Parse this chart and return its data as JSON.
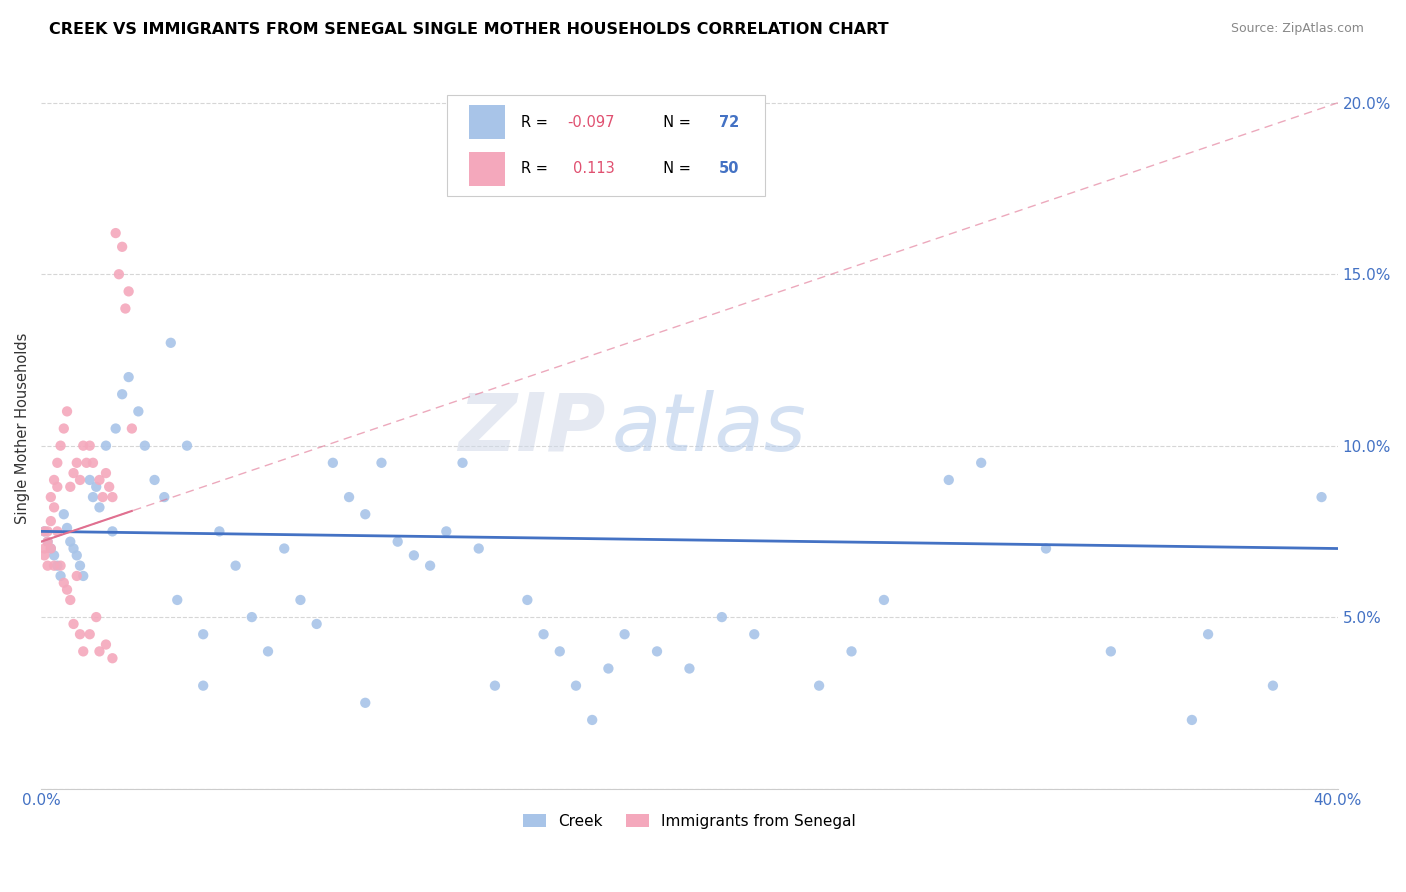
{
  "title": "CREEK VS IMMIGRANTS FROM SENEGAL SINGLE MOTHER HOUSEHOLDS CORRELATION CHART",
  "source": "Source: ZipAtlas.com",
  "ylabel": "Single Mother Households",
  "watermark": "ZIPatlas",
  "xlim": [
    0.0,
    0.4
  ],
  "ylim": [
    0.0,
    0.21
  ],
  "legend_creek_R": "-0.097",
  "legend_creek_N": "72",
  "legend_senegal_R": "0.113",
  "legend_senegal_N": "50",
  "creek_color": "#a8c4e8",
  "senegal_color": "#f4a8bc",
  "creek_line_color": "#4472c4",
  "senegal_line_color": "#e07090",
  "creek_x": [
    0.001,
    0.002,
    0.003,
    0.004,
    0.005,
    0.006,
    0.007,
    0.008,
    0.009,
    0.01,
    0.011,
    0.012,
    0.013,
    0.015,
    0.016,
    0.017,
    0.018,
    0.02,
    0.022,
    0.023,
    0.025,
    0.027,
    0.03,
    0.032,
    0.035,
    0.038,
    0.04,
    0.042,
    0.045,
    0.05,
    0.055,
    0.06,
    0.065,
    0.07,
    0.075,
    0.08,
    0.085,
    0.09,
    0.095,
    0.1,
    0.105,
    0.11,
    0.115,
    0.12,
    0.125,
    0.13,
    0.135,
    0.14,
    0.15,
    0.155,
    0.16,
    0.165,
    0.17,
    0.175,
    0.18,
    0.19,
    0.2,
    0.21,
    0.22,
    0.24,
    0.25,
    0.26,
    0.28,
    0.29,
    0.31,
    0.33,
    0.355,
    0.36,
    0.38,
    0.395,
    0.05,
    0.1
  ],
  "creek_y": [
    0.075,
    0.072,
    0.07,
    0.068,
    0.065,
    0.062,
    0.08,
    0.076,
    0.072,
    0.07,
    0.068,
    0.065,
    0.062,
    0.09,
    0.085,
    0.088,
    0.082,
    0.1,
    0.075,
    0.105,
    0.115,
    0.12,
    0.11,
    0.1,
    0.09,
    0.085,
    0.13,
    0.055,
    0.1,
    0.045,
    0.075,
    0.065,
    0.05,
    0.04,
    0.07,
    0.055,
    0.048,
    0.095,
    0.085,
    0.08,
    0.095,
    0.072,
    0.068,
    0.065,
    0.075,
    0.095,
    0.07,
    0.03,
    0.055,
    0.045,
    0.04,
    0.03,
    0.02,
    0.035,
    0.045,
    0.04,
    0.035,
    0.05,
    0.045,
    0.03,
    0.04,
    0.055,
    0.09,
    0.095,
    0.07,
    0.04,
    0.02,
    0.045,
    0.03,
    0.085,
    0.03,
    0.025
  ],
  "senegal_x": [
    0.001,
    0.001,
    0.001,
    0.002,
    0.002,
    0.002,
    0.003,
    0.003,
    0.003,
    0.004,
    0.004,
    0.004,
    0.005,
    0.005,
    0.005,
    0.006,
    0.006,
    0.007,
    0.007,
    0.008,
    0.008,
    0.009,
    0.009,
    0.01,
    0.01,
    0.011,
    0.011,
    0.012,
    0.012,
    0.013,
    0.013,
    0.014,
    0.015,
    0.015,
    0.016,
    0.017,
    0.018,
    0.018,
    0.019,
    0.02,
    0.02,
    0.021,
    0.022,
    0.022,
    0.023,
    0.024,
    0.025,
    0.026,
    0.027,
    0.028
  ],
  "senegal_y": [
    0.075,
    0.07,
    0.068,
    0.072,
    0.075,
    0.065,
    0.085,
    0.078,
    0.07,
    0.09,
    0.082,
    0.065,
    0.095,
    0.088,
    0.075,
    0.1,
    0.065,
    0.105,
    0.06,
    0.11,
    0.058,
    0.088,
    0.055,
    0.092,
    0.048,
    0.095,
    0.062,
    0.09,
    0.045,
    0.1,
    0.04,
    0.095,
    0.1,
    0.045,
    0.095,
    0.05,
    0.09,
    0.04,
    0.085,
    0.092,
    0.042,
    0.088,
    0.085,
    0.038,
    0.162,
    0.15,
    0.158,
    0.14,
    0.145,
    0.105
  ],
  "creek_trendline_x": [
    0.0,
    0.4
  ],
  "creek_trendline_y": [
    0.075,
    0.07
  ],
  "senegal_trendline_x": [
    0.0,
    0.4
  ],
  "senegal_trendline_y": [
    0.072,
    0.2
  ]
}
